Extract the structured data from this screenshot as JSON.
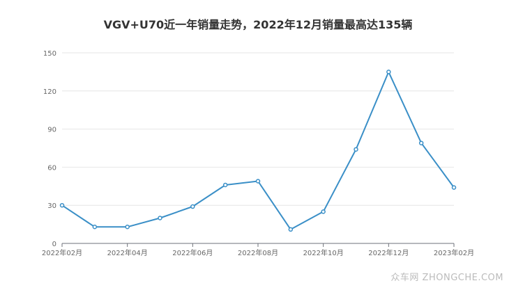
{
  "chart_data": {
    "type": "line",
    "title": "VGV+U70近一年销量走势，2022年12月销量最高达135辆",
    "x": [
      "2022年02月",
      "2022年03月",
      "2022年04月",
      "2022年05月",
      "2022年06月",
      "2022年07月",
      "2022年08月",
      "2022年09月",
      "2022年10月",
      "2022年11月",
      "2022年12月",
      "2023年01月",
      "2023年02月"
    ],
    "x_tick_labels": [
      "2022年02月",
      "2022年04月",
      "2022年06月",
      "2022年08月",
      "2022年10月",
      "2022年12月",
      "2023年02月"
    ],
    "y_ticks": [
      0,
      30,
      60,
      90,
      120,
      150
    ],
    "ylim": [
      0,
      150
    ],
    "series": [
      {
        "values": [
          30,
          13,
          13,
          20,
          29,
          46,
          49,
          11,
          25,
          74,
          135,
          79,
          44
        ]
      }
    ],
    "grid": true,
    "line_color": "#3a8fc7"
  },
  "watermark": "众车网 ZHONGCHE.COM"
}
